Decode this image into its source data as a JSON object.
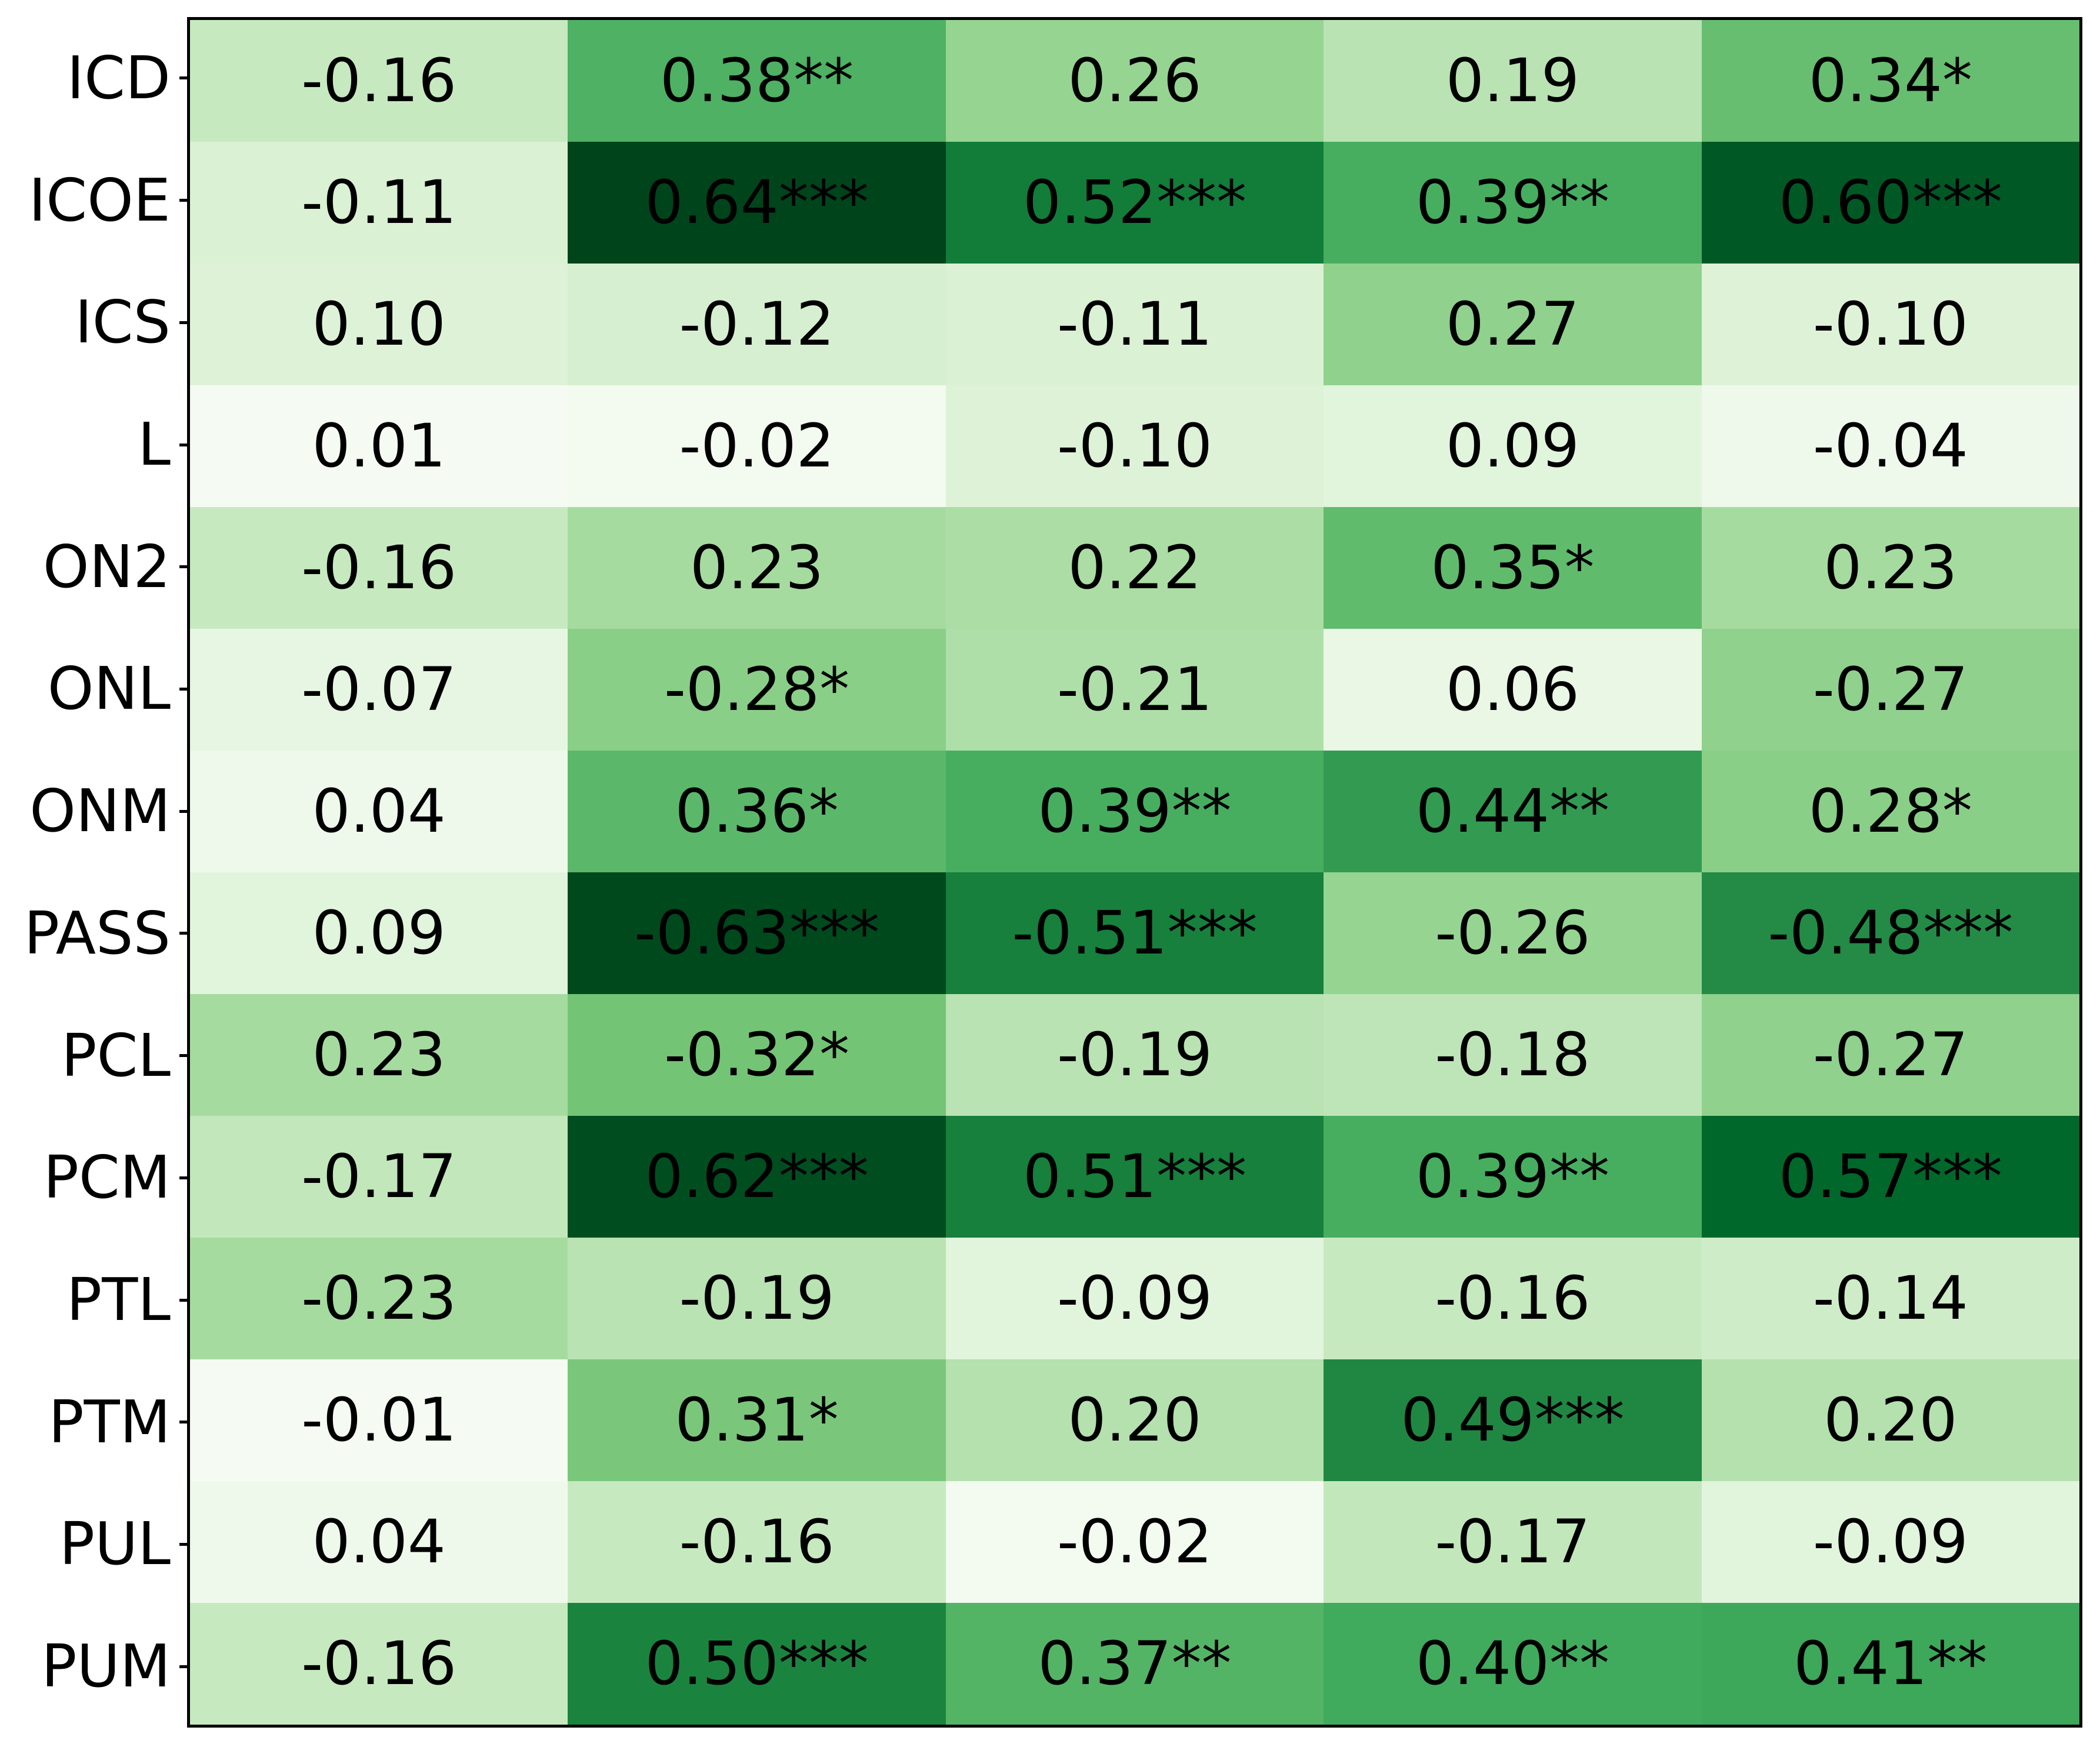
{
  "figure": {
    "background": "#ffffff",
    "axis_color": "#000000",
    "cell_text_color": "#000000"
  },
  "chart_data": {
    "type": "heatmap",
    "rows": [
      "ICD",
      "ICOE",
      "ICS",
      "L",
      "ON2",
      "ONL",
      "ONM",
      "PASS",
      "PCL",
      "PCM",
      "PTL",
      "PTM",
      "PUL",
      "PUM"
    ],
    "columns": 5,
    "column_labels": [],
    "cell_labels": [
      [
        "-0.16",
        "0.38**",
        "0.26",
        "0.19",
        "0.34*"
      ],
      [
        "-0.11",
        "0.64***",
        "0.52***",
        "0.39**",
        "0.60***"
      ],
      [
        "0.10",
        "-0.12",
        "-0.11",
        "0.27",
        "-0.10"
      ],
      [
        "0.01",
        "-0.02",
        "-0.10",
        "0.09",
        "-0.04"
      ],
      [
        "-0.16",
        "0.23",
        "0.22",
        "0.35*",
        "0.23"
      ],
      [
        "-0.07",
        "-0.28*",
        "-0.21",
        "0.06",
        "-0.27"
      ],
      [
        "0.04",
        "0.36*",
        "0.39**",
        "0.44**",
        "0.28*"
      ],
      [
        "0.09",
        "-0.63***",
        "-0.51***",
        "-0.26",
        "-0.48***"
      ],
      [
        "0.23",
        "-0.32*",
        "-0.19",
        "-0.18",
        "-0.27"
      ],
      [
        "-0.17",
        "0.62***",
        "0.51***",
        "0.39**",
        "0.57***"
      ],
      [
        "-0.23",
        "-0.19",
        "-0.09",
        "-0.16",
        "-0.14"
      ],
      [
        "-0.01",
        "0.31*",
        "0.20",
        "0.49***",
        "0.20"
      ],
      [
        "0.04",
        "-0.16",
        "-0.02",
        "-0.17",
        "-0.09"
      ],
      [
        "-0.16",
        "0.50***",
        "0.37**",
        "0.40**",
        "0.41**"
      ]
    ],
    "values": [
      [
        -0.16,
        0.38,
        0.26,
        0.19,
        0.34
      ],
      [
        -0.11,
        0.64,
        0.52,
        0.39,
        0.6
      ],
      [
        0.1,
        -0.12,
        -0.11,
        0.27,
        -0.1
      ],
      [
        0.01,
        -0.02,
        -0.1,
        0.09,
        -0.04
      ],
      [
        -0.16,
        0.23,
        0.22,
        0.35,
        0.23
      ],
      [
        -0.07,
        -0.28,
        -0.21,
        0.06,
        -0.27
      ],
      [
        0.04,
        0.36,
        0.39,
        0.44,
        0.28
      ],
      [
        0.09,
        -0.63,
        -0.51,
        -0.26,
        -0.48
      ],
      [
        0.23,
        -0.32,
        -0.19,
        -0.18,
        -0.27
      ],
      [
        -0.17,
        0.62,
        0.51,
        0.39,
        0.57
      ],
      [
        -0.23,
        -0.19,
        -0.09,
        -0.16,
        -0.14
      ],
      [
        -0.01,
        0.31,
        0.2,
        0.49,
        0.2
      ],
      [
        0.04,
        -0.16,
        -0.02,
        -0.17,
        -0.09
      ],
      [
        -0.16,
        0.5,
        0.37,
        0.4,
        0.41
      ]
    ],
    "colormap": {
      "name": "Greens",
      "applied_to": "absolute_value",
      "vmin": 0,
      "vmax": 0.64,
      "anchors": [
        "#f7fcf5",
        "#e5f5e0",
        "#c7e9c0",
        "#a1d99b",
        "#74c476",
        "#41ab5d",
        "#238b45",
        "#006d2c",
        "#00441b"
      ]
    },
    "grid": false,
    "legend": false,
    "colorbar": false
  }
}
